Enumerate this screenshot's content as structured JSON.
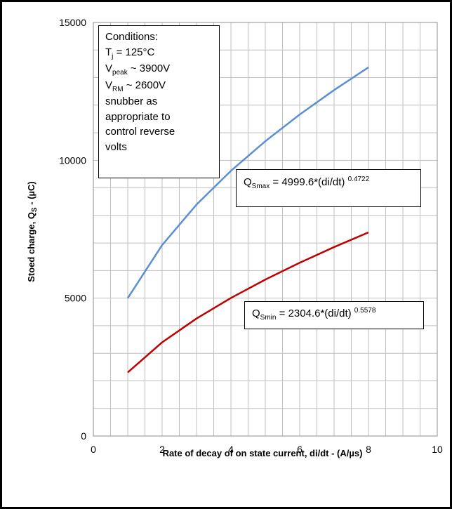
{
  "chart_data": {
    "type": "line",
    "xlabel": "Rate of decay of on state current, di/dt  - (A/µs)",
    "ylabel": "Stoed charge, Q",
    "ylabel_sub": "S",
    "ylabel_suffix": " - (µC)",
    "xlim": [
      0,
      10
    ],
    "ylim": [
      0,
      15000
    ],
    "x_ticks": [
      "0",
      "2",
      "4",
      "6",
      "8",
      "10"
    ],
    "y_ticks": [
      "0",
      "5000",
      "10000",
      "15000"
    ],
    "grid": true,
    "series": [
      {
        "color": "#5b8fd4",
        "x": [
          1,
          2,
          3,
          4,
          5,
          6,
          7,
          8
        ],
        "values": [
          5000,
          6926,
          8394,
          9618,
          10692,
          11660,
          12547,
          13372
        ]
      },
      {
        "color": "#c00000",
        "x": [
          1,
          2,
          3,
          4,
          5,
          6,
          7,
          8
        ],
        "values": [
          2305,
          3397,
          4261,
          5006,
          5673,
          6284,
          6852,
          7385
        ]
      }
    ]
  },
  "conditions_box": {
    "lines": [
      {
        "pre": "Conditions:",
        "sub": "",
        "post": ""
      },
      {
        "pre": "T",
        "sub": "j",
        "post": " = 125°C"
      },
      {
        "pre": "V",
        "sub": "peak",
        "post": " ~ 3900V"
      },
      {
        "pre": "V",
        "sub": "RM",
        "post": " ~ 2600V"
      },
      {
        "pre": "snubber as",
        "sub": "",
        "post": ""
      },
      {
        "pre": "appropriate to",
        "sub": "",
        "post": ""
      },
      {
        "pre": "control reverse",
        "sub": "",
        "post": ""
      },
      {
        "pre": "volts",
        "sub": "",
        "post": ""
      }
    ]
  },
  "qmax_box": {
    "pre": "Q",
    "sub": "Smax",
    "mid": " = 4999.6*(di/dt) ",
    "sup": "0.4722"
  },
  "qmin_box": {
    "pre": "Q",
    "sub": "Smin",
    "mid": " = 2304.6*(di/dt) ",
    "sup": "0.5578"
  }
}
